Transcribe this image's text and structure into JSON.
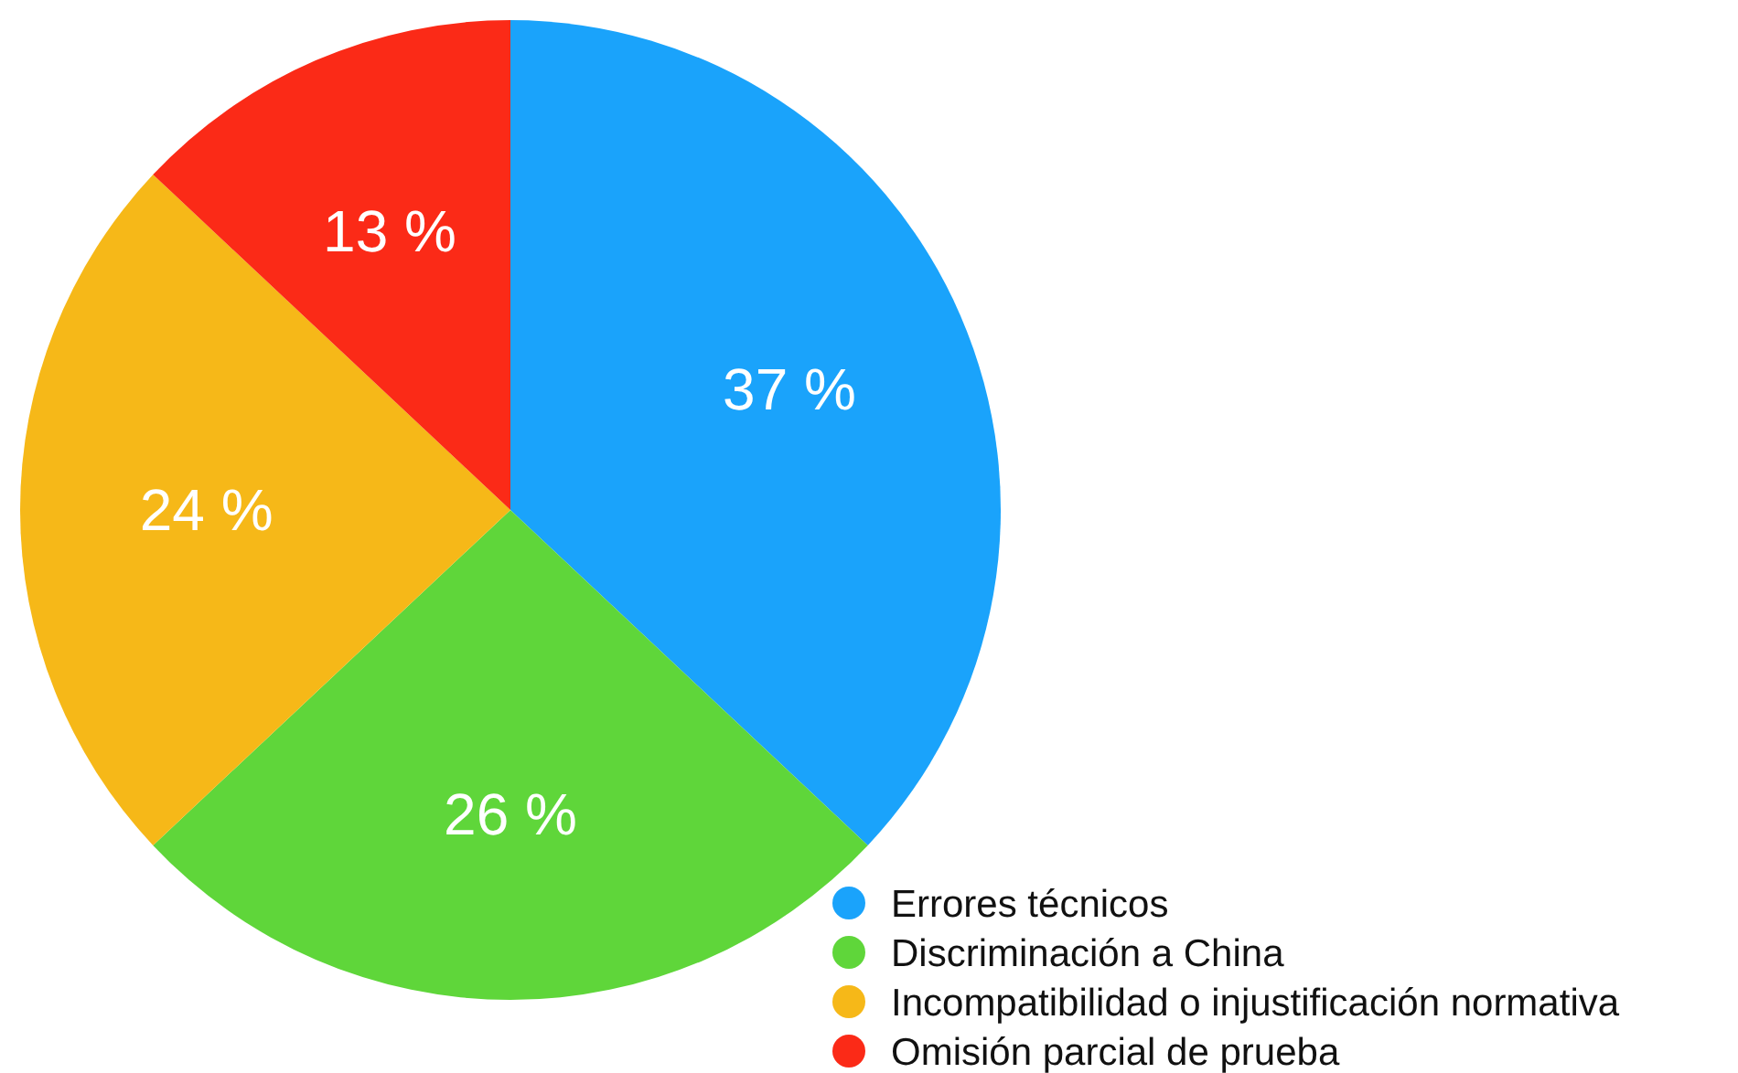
{
  "chart_data": {
    "type": "pie",
    "categories": [
      "Errores técnicos",
      "Discriminación a China",
      "Incompatibilidad o injustificación normativa",
      "Omisión parcial de prueba"
    ],
    "values": [
      37,
      26,
      24,
      13
    ],
    "colors": [
      "#1aa3fb",
      "#5fd63a",
      "#f6b818",
      "#fb2a17"
    ],
    "value_labels": [
      "37 %",
      "26 %",
      "24 %",
      "13 %"
    ],
    "legend": "bottom right"
  }
}
